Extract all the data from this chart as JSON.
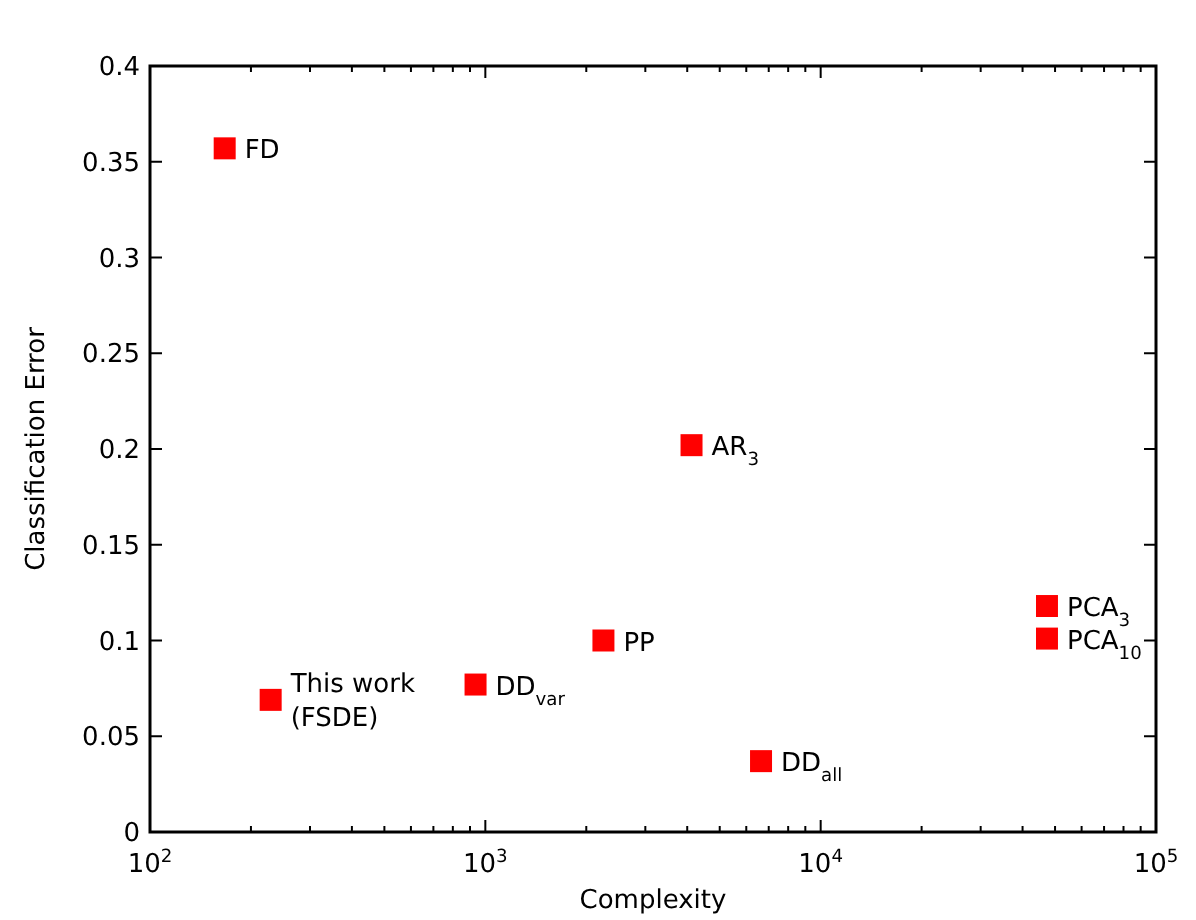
{
  "chart_data": {
    "type": "scatter",
    "xlabel": "Complexity",
    "ylabel": "Classification Error",
    "log": "x",
    "xlim": [
      100,
      100000
    ],
    "ylim": [
      0,
      0.4
    ],
    "xticks": [
      {
        "value": 100,
        "label": "10$^{2}$"
      },
      {
        "value": 200,
        "label": null
      },
      {
        "value": 300,
        "label": null
      },
      {
        "value": 400,
        "label": null
      },
      {
        "value": 500,
        "label": null
      },
      {
        "value": 600,
        "label": null
      },
      {
        "value": 700,
        "label": null
      },
      {
        "value": 800,
        "label": null
      },
      {
        "value": 900,
        "label": null
      },
      {
        "value": 1000,
        "label": "10$^{3}$"
      },
      {
        "value": 2000,
        "label": null
      },
      {
        "value": 3000,
        "label": null
      },
      {
        "value": 4000,
        "label": null
      },
      {
        "value": 5000,
        "label": null
      },
      {
        "value": 6000,
        "label": null
      },
      {
        "value": 7000,
        "label": null
      },
      {
        "value": 8000,
        "label": null
      },
      {
        "value": 9000,
        "label": null
      },
      {
        "value": 10000,
        "label": "10$^{4}$"
      },
      {
        "value": 20000,
        "label": null
      },
      {
        "value": 30000,
        "label": null
      },
      {
        "value": 40000,
        "label": null
      },
      {
        "value": 50000,
        "label": null
      },
      {
        "value": 60000,
        "label": null
      },
      {
        "value": 70000,
        "label": null
      },
      {
        "value": 80000,
        "label": null
      },
      {
        "value": 90000,
        "label": null
      },
      {
        "value": 100000,
        "label": "10$^{5}$"
      }
    ],
    "yticks": [
      0,
      0.05,
      0.1,
      0.15,
      0.2,
      0.25,
      0.3,
      0.35,
      0.4
    ],
    "grid": false,
    "marker": "square",
    "series": [
      {
        "color": "#ff0000",
        "x": [
          167,
          229,
          935,
          2250,
          4120,
          6640,
          47300,
          47300
        ],
        "values": [
          0.357,
          0.069,
          0.077,
          0.1,
          0.202,
          0.037,
          0.118,
          0.101
        ]
      }
    ],
    "annotations": [
      {
        "text": "FD",
        "x": 167,
        "y": 0.357
      },
      {
        "text": "This work\n(FSDE)",
        "x": 229,
        "y": 0.069
      },
      {
        "text": "DD$_{var}$",
        "x": 935,
        "y": 0.077
      },
      {
        "text": "PP",
        "x": 2250,
        "y": 0.1
      },
      {
        "text": "AR$_{3}$",
        "x": 4120,
        "y": 0.202
      },
      {
        "text": "DD$_{all}$",
        "x": 6640,
        "y": 0.037
      },
      {
        "text": "PCA$_{3}$",
        "x": 47300,
        "y": 0.118
      },
      {
        "text": "PCA$_{10}$",
        "x": 47300,
        "y": 0.101
      }
    ]
  }
}
